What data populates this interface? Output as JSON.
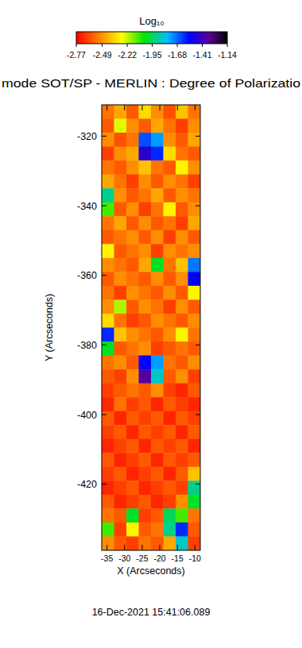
{
  "chart_data": {
    "type": "heatmap",
    "title": "mode SOT/SP - MERLIN : Degree of Polarizatio",
    "x_label": "X (Arcseconds)",
    "y_label": "Y (Arcseconds)",
    "annotations": [
      "16-Dec-2021 15:41:06.089"
    ],
    "xlim": [
      -36.5,
      -8.5
    ],
    "ylim": [
      -439,
      -311
    ],
    "xticks": [
      -35,
      -30,
      -25,
      -20,
      -15,
      -10
    ],
    "yticks": [
      -420,
      -400,
      -380,
      -360,
      -340,
      -320
    ],
    "colorbar": {
      "label": "Log₁₀",
      "range": [
        -2.77,
        -1.14
      ],
      "ticks": [
        -2.77,
        -2.49,
        -2.22,
        -1.95,
        -1.68,
        -1.41,
        -1.14
      ]
    },
    "x": [
      -34.75,
      -31.25,
      -27.75,
      -24.25,
      -20.75,
      -17.25,
      -13.75,
      -10.25
    ],
    "y": [
      -313,
      -317,
      -321,
      -325,
      -329,
      -333,
      -337,
      -341,
      -345,
      -349,
      -353,
      -357,
      -361,
      -365,
      -369,
      -373,
      -377,
      -381,
      -385,
      -389,
      -393,
      -397,
      -401,
      -405,
      -409,
      -413,
      -417,
      -421,
      -425,
      -429,
      -433,
      -437
    ],
    "values": [
      [
        -2.55,
        -2.45,
        -2.6,
        -2.35,
        -2.5,
        -2.62,
        -2.4,
        -2.55
      ],
      [
        -2.6,
        -2.25,
        -2.5,
        -2.6,
        -2.45,
        -2.55,
        -2.65,
        -2.5
      ],
      [
        -2.5,
        -2.62,
        -2.55,
        -1.65,
        -1.75,
        -2.5,
        -2.6,
        -2.45
      ],
      [
        -2.65,
        -2.5,
        -2.45,
        -1.45,
        -1.6,
        -2.35,
        -2.55,
        -2.6
      ],
      [
        -2.55,
        -2.6,
        -2.5,
        -2.4,
        -2.55,
        -2.6,
        -2.3,
        -2.5
      ],
      [
        -2.45,
        -2.55,
        -2.65,
        -2.5,
        -2.6,
        -2.5,
        -2.55,
        -2.65
      ],
      [
        -1.9,
        -2.5,
        -2.6,
        -2.55,
        -2.45,
        -2.6,
        -2.5,
        -2.55
      ],
      [
        -2.1,
        -2.6,
        -2.5,
        -2.65,
        -2.55,
        -2.3,
        -2.6,
        -2.5
      ],
      [
        -2.55,
        -2.45,
        -2.6,
        -2.5,
        -2.6,
        -2.55,
        -2.65,
        -2.45
      ],
      [
        -2.6,
        -2.55,
        -2.5,
        -2.6,
        -2.5,
        -2.65,
        -2.5,
        -2.6
      ],
      [
        -2.3,
        -2.6,
        -2.55,
        -2.5,
        -2.65,
        -2.5,
        -2.55,
        -2.5
      ],
      [
        -2.5,
        -2.55,
        -2.6,
        -2.45,
        -2.0,
        -2.55,
        -2.4,
        -1.7
      ],
      [
        -2.6,
        -2.5,
        -2.55,
        -2.6,
        -2.5,
        -2.6,
        -2.5,
        -1.55
      ],
      [
        -2.55,
        -2.65,
        -2.5,
        -2.55,
        -2.6,
        -2.5,
        -2.6,
        -2.3
      ],
      [
        -2.5,
        -2.2,
        -2.6,
        -2.5,
        -2.55,
        -2.65,
        -2.5,
        -2.6
      ],
      [
        -2.35,
        -2.55,
        -2.65,
        -2.6,
        -2.5,
        -2.55,
        -2.6,
        -2.5
      ],
      [
        -1.6,
        -2.4,
        -2.5,
        -2.55,
        -2.6,
        -2.5,
        -2.3,
        -2.55
      ],
      [
        -2.0,
        -2.6,
        -2.55,
        -2.5,
        -2.65,
        -2.6,
        -2.55,
        -2.6
      ],
      [
        -2.55,
        -2.5,
        -2.6,
        -1.55,
        -1.75,
        -2.55,
        -2.6,
        -2.5
      ],
      [
        -2.6,
        -2.65,
        -2.5,
        -1.35,
        -1.85,
        -2.6,
        -2.5,
        -2.65
      ],
      [
        -2.65,
        -2.6,
        -2.55,
        -2.6,
        -2.5,
        -2.65,
        -2.7,
        -2.6
      ],
      [
        -2.7,
        -2.55,
        -2.65,
        -2.6,
        -2.7,
        -2.6,
        -2.65,
        -2.7
      ],
      [
        -2.6,
        -2.7,
        -2.6,
        -2.65,
        -2.6,
        -2.7,
        -2.6,
        -2.65
      ],
      [
        -2.65,
        -2.6,
        -2.7,
        -2.6,
        -2.65,
        -2.6,
        -2.7,
        -2.6
      ],
      [
        -2.7,
        -2.65,
        -2.6,
        -2.7,
        -2.6,
        -2.65,
        -2.6,
        -2.7
      ],
      [
        -2.6,
        -2.7,
        -2.65,
        -2.6,
        -2.7,
        -2.6,
        -2.65,
        -2.6
      ],
      [
        -2.65,
        -2.6,
        -2.7,
        -2.65,
        -2.6,
        -2.7,
        -2.6,
        -2.4
      ],
      [
        -2.7,
        -2.65,
        -2.6,
        -2.7,
        -2.65,
        -2.6,
        -2.65,
        -1.9
      ],
      [
        -2.6,
        -2.7,
        -2.65,
        -2.6,
        -2.7,
        -2.65,
        -2.5,
        -2.0
      ],
      [
        -2.55,
        -2.6,
        -2.0,
        -2.65,
        -2.6,
        -1.95,
        -2.1,
        -2.55
      ],
      [
        -2.1,
        -2.65,
        -2.3,
        -2.6,
        -2.55,
        -1.9,
        -1.6,
        -2.6
      ],
      [
        -2.5,
        -2.6,
        -2.65,
        -2.55,
        -2.6,
        -2.45,
        -1.85,
        -2.65
      ]
    ]
  }
}
